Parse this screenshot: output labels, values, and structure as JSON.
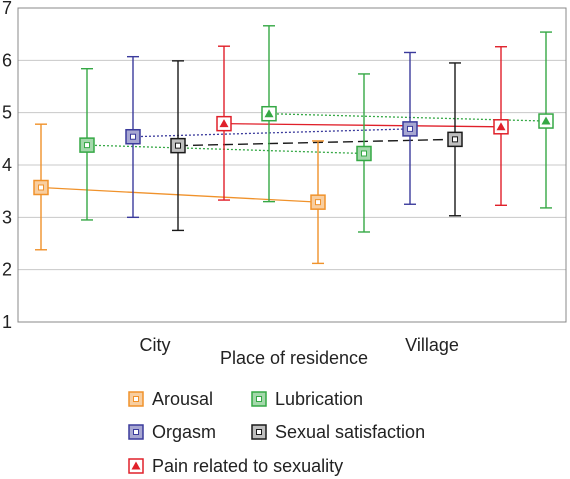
{
  "chart_data": {
    "type": "line",
    "xlabel": "Place of residence",
    "ylabel": "",
    "categories": [
      "City",
      "Village"
    ],
    "ylim": [
      1,
      7
    ],
    "yticks": [
      1,
      2,
      3,
      4,
      5,
      6,
      7
    ],
    "grid": true,
    "legend_position": "bottom",
    "series": [
      {
        "name": "Arousal",
        "color": "#f0922b",
        "marker": "square",
        "line": "solid",
        "values": [
          3.57,
          3.29
        ],
        "lower": [
          2.38,
          2.12
        ],
        "upper": [
          4.78,
          4.46
        ]
      },
      {
        "name": "Lubrication",
        "color": "#35a845",
        "marker": "square",
        "line": "dotted",
        "values": [
          4.38,
          4.22
        ],
        "lower": [
          2.95,
          2.72
        ],
        "upper": [
          5.84,
          5.74
        ]
      },
      {
        "name": "Orgasm",
        "color": "#3b3b9c",
        "marker": "square",
        "line": "dotted",
        "values": [
          4.54,
          4.69
        ],
        "lower": [
          3.0,
          3.25
        ],
        "upper": [
          6.07,
          6.15
        ]
      },
      {
        "name": "Sexual satisfaction",
        "color": "#1a1a1a",
        "marker": "square",
        "line": "dashed",
        "values": [
          4.37,
          4.49
        ],
        "lower": [
          2.75,
          3.03
        ],
        "upper": [
          5.99,
          5.95
        ]
      },
      {
        "name": "Pain related to sexuality",
        "color": "#e0202a",
        "marker": "triangle",
        "line": "solid",
        "values": [
          4.79,
          4.73
        ],
        "lower": [
          3.33,
          3.23
        ],
        "upper": [
          6.27,
          6.26
        ]
      },
      {
        "name": "Lubrication",
        "color": "#35a845",
        "marker": "triangle",
        "line": "dotted",
        "legend": false,
        "values": [
          4.98,
          4.84
        ],
        "lower": [
          3.3,
          3.18
        ],
        "upper": [
          6.66,
          6.54
        ]
      }
    ]
  }
}
